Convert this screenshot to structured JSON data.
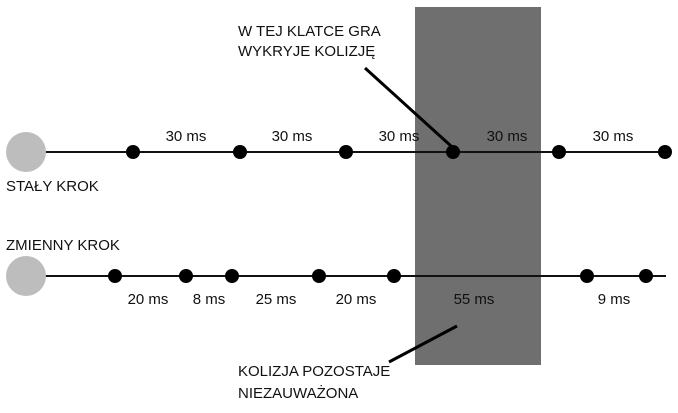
{
  "colors": {
    "background": "#ffffff",
    "obstacle": "#6f6f6f",
    "timeline": "#111111",
    "dot": "#000000",
    "start_circle": "#bdbdbd",
    "text": "#111111"
  },
  "fixed_step": {
    "label": "STAŁY KROK",
    "intervals": [
      "30 ms",
      "30 ms",
      "30 ms",
      "30 ms",
      "30 ms"
    ]
  },
  "variable_step": {
    "label": "ZMIENNY KROK",
    "intervals": [
      "20 ms",
      "8 ms",
      "25 ms",
      "20 ms",
      "55 ms",
      "9 ms"
    ]
  },
  "annotations": {
    "detected_line1": "W TEJ KLATCE GRA",
    "detected_line2": "WYKRYJE KOLIZJĘ",
    "missed_line1": "KOLIZJA POZOSTAJE",
    "missed_line2": "NIEZAUWAŻONA"
  }
}
